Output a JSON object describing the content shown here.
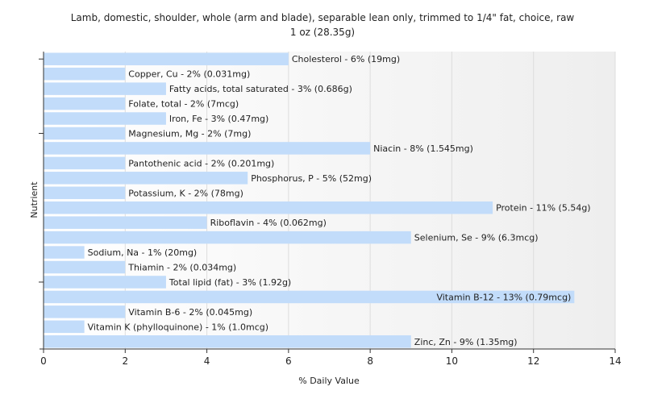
{
  "chart_data": {
    "type": "bar",
    "orientation": "horizontal",
    "title": "Lamb, domestic, shoulder, whole (arm and blade), separable lean only, trimmed to 1/4\" fat, choice, raw",
    "subtitle": "1 oz (28.35g)",
    "xlabel": "% Daily Value",
    "ylabel": "Nutrient",
    "xlim": [
      0,
      14
    ],
    "xticks": [
      0,
      2,
      4,
      6,
      8,
      10,
      12,
      14
    ],
    "bar_color": "#c2dcfa",
    "grid": true,
    "categories": [
      "Cholesterol",
      "Copper, Cu",
      "Fatty acids, total saturated",
      "Folate, total",
      "Iron, Fe",
      "Magnesium, Mg",
      "Niacin",
      "Pantothenic acid",
      "Phosphorus, P",
      "Potassium, K",
      "Protein",
      "Riboflavin",
      "Selenium, Se",
      "Sodium, Na",
      "Thiamin",
      "Total lipid (fat)",
      "Vitamin B-12",
      "Vitamin B-6",
      "Vitamin K (phylloquinone)",
      "Zinc, Zn"
    ],
    "values": [
      6,
      2,
      3,
      2,
      3,
      2,
      8,
      2,
      5,
      2,
      11,
      4,
      9,
      1,
      2,
      3,
      13,
      2,
      1,
      9
    ],
    "labels": [
      "Cholesterol - 6% (19mg)",
      "Copper, Cu - 2% (0.031mg)",
      "Fatty acids, total saturated - 3% (0.686g)",
      "Folate, total - 2% (7mcg)",
      "Iron, Fe - 3% (0.47mg)",
      "Magnesium, Mg - 2% (7mg)",
      "Niacin - 8% (1.545mg)",
      "Pantothenic acid - 2% (0.201mg)",
      "Phosphorus, P - 5% (52mg)",
      "Potassium, K - 2% (78mg)",
      "Protein - 11% (5.54g)",
      "Riboflavin - 4% (0.062mg)",
      "Selenium, Se - 9% (6.3mcg)",
      "Sodium, Na - 1% (20mg)",
      "Thiamin - 2% (0.034mg)",
      "Total lipid (fat) - 3% (1.92g)",
      "Vitamin B-12 - 13% (0.79mcg)",
      "Vitamin B-6 - 2% (0.045mg)",
      "Vitamin K (phylloquinone) - 1% (1.0mcg)",
      "Zinc, Zn - 9% (1.35mg)"
    ]
  }
}
